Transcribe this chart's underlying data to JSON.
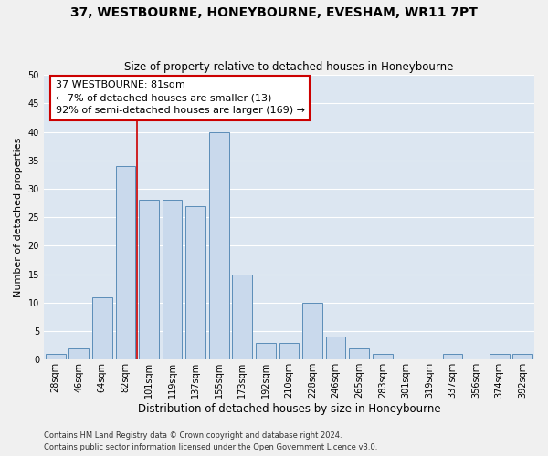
{
  "title": "37, WESTBOURNE, HONEYBOURNE, EVESHAM, WR11 7PT",
  "subtitle": "Size of property relative to detached houses in Honeybourne",
  "xlabel": "Distribution of detached houses by size in Honeybourne",
  "ylabel": "Number of detached properties",
  "bin_labels": [
    "28sqm",
    "46sqm",
    "64sqm",
    "82sqm",
    "101sqm",
    "119sqm",
    "137sqm",
    "155sqm",
    "173sqm",
    "192sqm",
    "210sqm",
    "228sqm",
    "246sqm",
    "265sqm",
    "283sqm",
    "301sqm",
    "319sqm",
    "337sqm",
    "356sqm",
    "374sqm",
    "392sqm"
  ],
  "bar_heights": [
    1,
    2,
    11,
    34,
    28,
    28,
    27,
    40,
    15,
    3,
    3,
    10,
    4,
    2,
    1,
    0,
    0,
    1,
    0,
    1,
    1
  ],
  "bar_color": "#c9d9ec",
  "bar_edge_color": "#5b8db8",
  "vline_x": 3.5,
  "vline_color": "#cc0000",
  "annotation_text": "37 WESTBOURNE: 81sqm\n← 7% of detached houses are smaller (13)\n92% of semi-detached houses are larger (169) →",
  "annotation_box_color": "#ffffff",
  "annotation_box_edge_color": "#cc0000",
  "ylim": [
    0,
    50
  ],
  "yticks": [
    0,
    5,
    10,
    15,
    20,
    25,
    30,
    35,
    40,
    45,
    50
  ],
  "grid_color": "#ffffff",
  "bg_color": "#dce6f1",
  "fig_bg_color": "#f0f0f0",
  "footer_line1": "Contains HM Land Registry data © Crown copyright and database right 2024.",
  "footer_line2": "Contains public sector information licensed under the Open Government Licence v3.0.",
  "title_fontsize": 10,
  "subtitle_fontsize": 8.5,
  "xlabel_fontsize": 8.5,
  "ylabel_fontsize": 8,
  "annotation_fontsize": 8,
  "tick_fontsize": 7
}
